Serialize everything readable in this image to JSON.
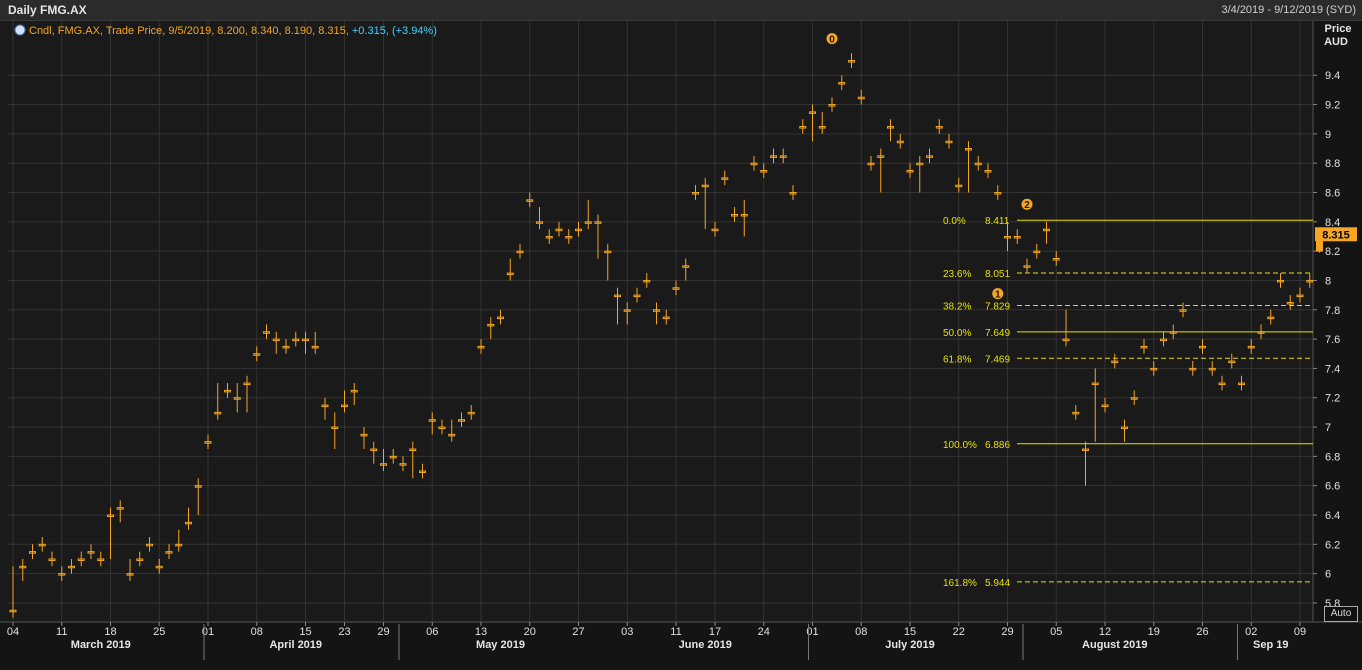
{
  "window": {
    "title": "Daily FMG.AX",
    "date_range": "3/4/2019 - 9/12/2019 (SYD)"
  },
  "legend": {
    "icon": "chart-settings-icon",
    "text": "Cndl, FMG.AX, Trade Price, 9/5/2019, 8.200, 8.340, 8.190, 8.315,",
    "change": "+0.315, (+3.94%)"
  },
  "axis_title": {
    "line1": "Price",
    "line2": "AUD"
  },
  "auto_button": "Auto",
  "price_tag": "8.315",
  "colors": {
    "bg": "#1a1a1a",
    "grid": "#333333",
    "candle": "#f5a623",
    "fib": "#e8e000",
    "legend_change": "#3fd2ff"
  },
  "chart_data": {
    "type": "candlestick",
    "y_ticks": [
      "5.8",
      "6",
      "6.2",
      "6.4",
      "6.6",
      "6.8",
      "7",
      "7.2",
      "7.4",
      "7.6",
      "7.8",
      "8",
      "8.2",
      "8.4",
      "8.6",
      "8.8",
      "9",
      "9.2",
      "9.4"
    ],
    "ylim": [
      5.67,
      9.77
    ],
    "x_day_labels": [
      {
        "l": "04",
        "i": 0
      },
      {
        "l": "11",
        "i": 5
      },
      {
        "l": "18",
        "i": 10
      },
      {
        "l": "25",
        "i": 15
      },
      {
        "l": "01",
        "i": 20
      },
      {
        "l": "08",
        "i": 25
      },
      {
        "l": "15",
        "i": 30
      },
      {
        "l": "23",
        "i": 34
      },
      {
        "l": "29",
        "i": 38
      },
      {
        "l": "06",
        "i": 43
      },
      {
        "l": "13",
        "i": 48
      },
      {
        "l": "20",
        "i": 53
      },
      {
        "l": "27",
        "i": 58
      },
      {
        "l": "03",
        "i": 63
      },
      {
        "l": "11",
        "i": 68
      },
      {
        "l": "17",
        "i": 72
      },
      {
        "l": "24",
        "i": 77
      },
      {
        "l": "01",
        "i": 82
      },
      {
        "l": "08",
        "i": 87
      },
      {
        "l": "15",
        "i": 92
      },
      {
        "l": "22",
        "i": 97
      },
      {
        "l": "29",
        "i": 102
      },
      {
        "l": "05",
        "i": 107
      },
      {
        "l": "12",
        "i": 112
      },
      {
        "l": "19",
        "i": 117
      },
      {
        "l": "26",
        "i": 122
      },
      {
        "l": "02",
        "i": 127
      },
      {
        "l": "09",
        "i": 132
      }
    ],
    "month_labels": [
      {
        "l": "March 2019",
        "i": 9
      },
      {
        "l": "April 2019",
        "i": 29
      },
      {
        "l": "May 2019",
        "i": 50
      },
      {
        "l": "June 2019",
        "i": 71
      },
      {
        "l": "July 2019",
        "i": 92
      },
      {
        "l": "August 2019",
        "i": 113
      },
      {
        "l": "Sep 19",
        "i": 129
      }
    ],
    "month_separators": [
      20,
      40,
      82,
      104,
      126
    ],
    "candles": [
      [
        5.75,
        5.75,
        6.05,
        5.7
      ],
      [
        6.05,
        6.05,
        6.1,
        5.95
      ],
      [
        6.15,
        6.15,
        6.2,
        6.1
      ],
      [
        6.2,
        6.2,
        6.25,
        6.15
      ],
      [
        6.1,
        6.1,
        6.15,
        6.05
      ],
      [
        6.0,
        6.0,
        6.05,
        5.95
      ],
      [
        6.05,
        6.05,
        6.1,
        6.0
      ],
      [
        6.1,
        6.1,
        6.15,
        6.05
      ],
      [
        6.15,
        6.15,
        6.2,
        6.1
      ],
      [
        6.1,
        6.1,
        6.15,
        6.05
      ],
      [
        6.4,
        6.4,
        6.45,
        6.1
      ],
      [
        6.45,
        6.45,
        6.5,
        6.35
      ],
      [
        6.0,
        6.0,
        6.1,
        5.95
      ],
      [
        6.1,
        6.1,
        6.15,
        6.05
      ],
      [
        6.2,
        6.2,
        6.25,
        6.15
      ],
      [
        6.05,
        6.05,
        6.1,
        6.0
      ],
      [
        6.15,
        6.15,
        6.2,
        6.1
      ],
      [
        6.2,
        6.2,
        6.3,
        6.15
      ],
      [
        6.35,
        6.35,
        6.45,
        6.3
      ],
      [
        6.6,
        6.6,
        6.65,
        6.4
      ],
      [
        6.9,
        6.9,
        6.95,
        6.85
      ],
      [
        7.1,
        7.1,
        7.3,
        7.05
      ],
      [
        7.25,
        7.25,
        7.3,
        7.2
      ],
      [
        7.2,
        7.2,
        7.3,
        7.1
      ],
      [
        7.3,
        7.3,
        7.35,
        7.1
      ],
      [
        7.5,
        7.5,
        7.55,
        7.45
      ],
      [
        7.65,
        7.65,
        7.7,
        7.6
      ],
      [
        7.6,
        7.6,
        7.65,
        7.5
      ],
      [
        7.55,
        7.55,
        7.6,
        7.5
      ],
      [
        7.6,
        7.6,
        7.65,
        7.55
      ],
      [
        7.6,
        7.6,
        7.65,
        7.5
      ],
      [
        7.55,
        7.55,
        7.65,
        7.5
      ],
      [
        7.15,
        7.15,
        7.2,
        7.05
      ],
      [
        7.0,
        7.0,
        7.1,
        6.85
      ],
      [
        7.15,
        7.15,
        7.25,
        7.1
      ],
      [
        7.25,
        7.25,
        7.3,
        7.15
      ],
      [
        6.95,
        6.95,
        7.0,
        6.85
      ],
      [
        6.85,
        6.85,
        6.9,
        6.75
      ],
      [
        6.75,
        6.75,
        6.85,
        6.7
      ],
      [
        6.8,
        6.8,
        6.85,
        6.75
      ],
      [
        6.75,
        6.75,
        6.8,
        6.7
      ],
      [
        6.85,
        6.85,
        6.9,
        6.65
      ],
      [
        6.7,
        6.7,
        6.75,
        6.65
      ],
      [
        7.05,
        7.05,
        7.1,
        6.95
      ],
      [
        7.0,
        7.0,
        7.05,
        6.95
      ],
      [
        6.95,
        6.95,
        7.05,
        6.9
      ],
      [
        7.05,
        7.05,
        7.1,
        7.0
      ],
      [
        7.1,
        7.1,
        7.15,
        7.05
      ],
      [
        7.55,
        7.55,
        7.6,
        7.5
      ],
      [
        7.7,
        7.7,
        7.75,
        7.6
      ],
      [
        7.75,
        7.75,
        7.8,
        7.7
      ],
      [
        8.05,
        8.05,
        8.15,
        8.0
      ],
      [
        8.2,
        8.2,
        8.25,
        8.15
      ],
      [
        8.55,
        8.55,
        8.6,
        8.5
      ],
      [
        8.4,
        8.4,
        8.5,
        8.35
      ],
      [
        8.3,
        8.3,
        8.35,
        8.25
      ],
      [
        8.35,
        8.35,
        8.4,
        8.3
      ],
      [
        8.3,
        8.3,
        8.35,
        8.25
      ],
      [
        8.35,
        8.35,
        8.4,
        8.3
      ],
      [
        8.4,
        8.4,
        8.55,
        8.35
      ],
      [
        8.4,
        8.4,
        8.45,
        8.15
      ],
      [
        8.2,
        8.2,
        8.25,
        8.0
      ],
      [
        7.9,
        7.9,
        7.95,
        7.7
      ],
      [
        7.8,
        7.8,
        7.85,
        7.7
      ],
      [
        7.9,
        7.9,
        7.95,
        7.85
      ],
      [
        8.0,
        8.0,
        8.05,
        7.95
      ],
      [
        7.8,
        7.8,
        7.85,
        7.7
      ],
      [
        7.75,
        7.75,
        7.8,
        7.7
      ],
      [
        7.95,
        7.95,
        8.0,
        7.9
      ],
      [
        8.1,
        8.1,
        8.15,
        8.0
      ],
      [
        8.6,
        8.6,
        8.65,
        8.55
      ],
      [
        8.65,
        8.65,
        8.7,
        8.35
      ],
      [
        8.35,
        8.35,
        8.4,
        8.3
      ],
      [
        8.7,
        8.7,
        8.75,
        8.65
      ],
      [
        8.45,
        8.45,
        8.5,
        8.4
      ],
      [
        8.45,
        8.45,
        8.55,
        8.3
      ],
      [
        8.8,
        8.8,
        8.85,
        8.75
      ],
      [
        8.75,
        8.75,
        8.8,
        8.7
      ],
      [
        8.85,
        8.85,
        8.9,
        8.8
      ],
      [
        8.85,
        8.85,
        8.9,
        8.8
      ],
      [
        8.6,
        8.6,
        8.65,
        8.55
      ],
      [
        9.05,
        9.05,
        9.1,
        9.0
      ],
      [
        9.15,
        9.15,
        9.2,
        8.95
      ],
      [
        9.05,
        9.05,
        9.15,
        9.0
      ],
      [
        9.2,
        9.2,
        9.25,
        9.15
      ],
      [
        9.35,
        9.35,
        9.4,
        9.3
      ],
      [
        9.5,
        9.5,
        9.55,
        9.45
      ],
      [
        9.25,
        9.25,
        9.3,
        9.2
      ],
      [
        8.8,
        8.8,
        8.85,
        8.75
      ],
      [
        8.85,
        8.85,
        8.9,
        8.6
      ],
      [
        9.05,
        9.05,
        9.1,
        8.95
      ],
      [
        8.95,
        8.95,
        9.0,
        8.9
      ],
      [
        8.75,
        8.75,
        8.8,
        8.7
      ],
      [
        8.8,
        8.8,
        8.85,
        8.6
      ],
      [
        8.85,
        8.85,
        8.9,
        8.8
      ],
      [
        9.05,
        9.05,
        9.1,
        9.0
      ],
      [
        8.95,
        8.95,
        9.0,
        8.9
      ],
      [
        8.65,
        8.65,
        8.7,
        8.6
      ],
      [
        8.9,
        8.9,
        8.95,
        8.6
      ],
      [
        8.8,
        8.8,
        8.85,
        8.75
      ],
      [
        8.75,
        8.75,
        8.8,
        8.7
      ],
      [
        8.6,
        8.6,
        8.65,
        8.55
      ],
      [
        8.3,
        8.3,
        8.4,
        8.2
      ],
      [
        8.3,
        8.3,
        8.35,
        8.25
      ],
      [
        8.1,
        8.1,
        8.15,
        8.05
      ],
      [
        8.2,
        8.2,
        8.25,
        8.15
      ],
      [
        8.35,
        8.35,
        8.4,
        8.25
      ],
      [
        8.15,
        8.15,
        8.2,
        8.1
      ],
      [
        7.6,
        7.6,
        7.8,
        7.55
      ],
      [
        7.1,
        7.1,
        7.15,
        7.05
      ],
      [
        6.85,
        6.85,
        6.9,
        6.6
      ],
      [
        7.3,
        7.3,
        7.4,
        6.9
      ],
      [
        7.15,
        7.15,
        7.2,
        7.1
      ],
      [
        7.45,
        7.45,
        7.5,
        7.4
      ],
      [
        7.0,
        7.0,
        7.05,
        6.9
      ],
      [
        7.2,
        7.2,
        7.25,
        7.15
      ],
      [
        7.55,
        7.55,
        7.6,
        7.5
      ],
      [
        7.4,
        7.4,
        7.45,
        7.35
      ],
      [
        7.6,
        7.6,
        7.65,
        7.55
      ],
      [
        7.65,
        7.65,
        7.7,
        7.6
      ],
      [
        7.8,
        7.8,
        7.85,
        7.75
      ],
      [
        7.4,
        7.4,
        7.45,
        7.35
      ],
      [
        7.55,
        7.55,
        7.6,
        7.5
      ],
      [
        7.4,
        7.4,
        7.45,
        7.35
      ],
      [
        7.3,
        7.3,
        7.35,
        7.25
      ],
      [
        7.45,
        7.45,
        7.5,
        7.4
      ],
      [
        7.3,
        7.3,
        7.35,
        7.25
      ],
      [
        7.55,
        7.55,
        7.6,
        7.5
      ],
      [
        7.65,
        7.65,
        7.7,
        7.6
      ],
      [
        7.75,
        7.75,
        7.8,
        7.7
      ],
      [
        8.0,
        8.0,
        8.05,
        7.95
      ],
      [
        7.85,
        7.85,
        7.9,
        7.8
      ],
      [
        7.9,
        7.9,
        7.95,
        7.85
      ],
      [
        8.0,
        8.0,
        8.05,
        7.95
      ],
      [
        8.315,
        8.2,
        8.34,
        8.19
      ]
    ],
    "fib_levels": [
      {
        "pct": "0.0%",
        "val": "8.411",
        "price": 8.411,
        "style": "solid"
      },
      {
        "pct": "23.6%",
        "val": "8.051",
        "price": 8.051,
        "style": "dashed"
      },
      {
        "pct": "38.2%",
        "val": "7.829",
        "price": 7.829,
        "style": "dashed"
      },
      {
        "pct": "50.0%",
        "val": "7.649",
        "price": 7.649,
        "style": "solid"
      },
      {
        "pct": "61.8%",
        "val": "7.469",
        "price": 7.469,
        "style": "dashed"
      },
      {
        "pct": "100.0%",
        "val": "6.886",
        "price": 6.886,
        "style": "solid"
      },
      {
        "pct": "161.8%",
        "val": "5.944",
        "price": 5.944,
        "style": "dashed"
      }
    ],
    "markers": [
      {
        "label": "0",
        "i": 84,
        "price": 9.65
      },
      {
        "label": "1",
        "i": 101,
        "price": 7.91
      },
      {
        "label": "2",
        "i": 104,
        "price": 8.52
      }
    ]
  }
}
